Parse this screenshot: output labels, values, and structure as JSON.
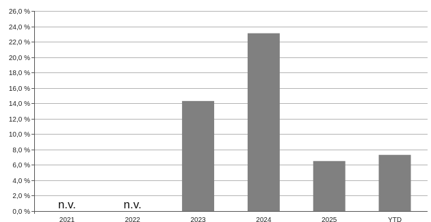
{
  "chart_data": {
    "type": "bar",
    "categories": [
      "2021",
      "2022",
      "2023",
      "2024",
      "2025",
      "YTD"
    ],
    "values": [
      null,
      null,
      14.3,
      23.1,
      6.5,
      7.3
    ],
    "value_labels": [
      "n.v.",
      "n.v.",
      "",
      "",
      "",
      ""
    ],
    "y_ticks": [
      0,
      2,
      4,
      6,
      8,
      10,
      12,
      14,
      16,
      18,
      20,
      22,
      24,
      26
    ],
    "y_tick_labels": [
      "0,0 %",
      "2,0 %",
      "4,0 %",
      "6,0 %",
      "8,0 %",
      "10,0 %",
      "12,0 %",
      "14,0 %",
      "16,0 %",
      "18,0 %",
      "20,0 %",
      "22,0 %",
      "24,0 %",
      "26,0 %"
    ],
    "ylim": [
      0,
      26
    ],
    "grid": true,
    "title": "",
    "xlabel": "",
    "ylabel": "",
    "colors": {
      "bar": "#808080",
      "grid": "#b3b3b3",
      "axis": "#555555"
    }
  }
}
